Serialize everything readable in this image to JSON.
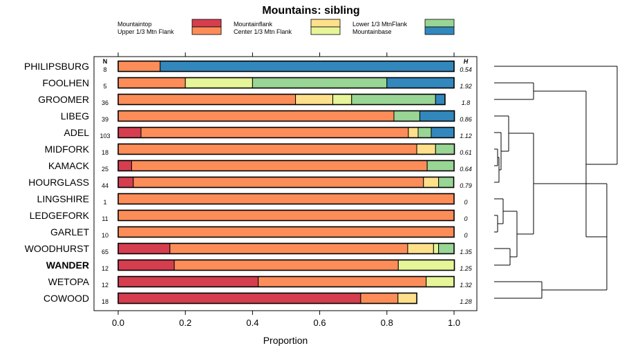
{
  "chart_data": {
    "type": "bar",
    "stacked": true,
    "orientation": "horizontal",
    "title": "Mountains: sibling",
    "xlabel": "Proportion",
    "xlim": [
      0,
      1
    ],
    "xticks": [
      "0.0",
      "0.2",
      "0.4",
      "0.6",
      "0.8",
      "1.0"
    ],
    "n_header": "N",
    "h_header": "H",
    "legend_placement": "top",
    "series": [
      {
        "name": "Mountaintop",
        "color": "#d53e4f"
      },
      {
        "name": "Upper 1/3 Mtn Flank",
        "color": "#fc8d59"
      },
      {
        "name": "Mountainflank",
        "color": "#fee08b"
      },
      {
        "name": "Center 1/3 Mtn Flank",
        "color": "#e6f598"
      },
      {
        "name": "Lower 1/3 MtnFlank",
        "color": "#99d594"
      },
      {
        "name": "Mountainbase",
        "color": "#3288bd"
      }
    ],
    "categories": [
      "PHILIPSBURG",
      "FOOLHEN",
      "GROOMER",
      "LIBEG",
      "ADEL",
      "MIDFORK",
      "KAMACK",
      "HOURGLASS",
      "LINGSHIRE",
      "LEDGEFORK",
      "GARLET",
      "WOODHURST",
      "WANDER",
      "WETOPA",
      "COWOOD"
    ],
    "highlight": "WANDER",
    "n": [
      "8",
      "5",
      "36",
      "39",
      "103",
      "18",
      "25",
      "44",
      "1",
      "11",
      "10",
      "65",
      "12",
      "12",
      "18"
    ],
    "h": [
      "0.54",
      "1.92",
      "1.8",
      "0.86",
      "1.12",
      "0.61",
      "0.64",
      "0.79",
      "0",
      "0",
      "0",
      "1.35",
      "1.25",
      "1.32",
      "1.28"
    ],
    "values": [
      [
        0,
        0.125,
        0,
        0,
        0,
        0.875
      ],
      [
        0,
        0.2,
        0,
        0.2,
        0.4,
        0.2
      ],
      [
        0,
        0.528,
        0.111,
        0.056,
        0.25,
        0.028
      ],
      [
        0,
        0.821,
        0,
        0,
        0.077,
        0.103
      ],
      [
        0.068,
        0.796,
        0.029,
        0,
        0.039,
        0.068
      ],
      [
        0,
        0.889,
        0.056,
        0,
        0.056,
        0
      ],
      [
        0.04,
        0.88,
        0,
        0,
        0.08,
        0
      ],
      [
        0.045,
        0.864,
        0.045,
        0,
        0.045,
        0
      ],
      [
        0,
        1,
        0,
        0,
        0,
        0
      ],
      [
        0,
        1,
        0,
        0,
        0,
        0
      ],
      [
        0,
        1,
        0,
        0,
        0,
        0
      ],
      [
        0.154,
        0.708,
        0.077,
        0.015,
        0.046,
        0
      ],
      [
        0.167,
        0.667,
        0,
        0.167,
        0,
        0
      ],
      [
        0.417,
        0.5,
        0,
        0.083,
        0,
        0
      ],
      [
        0.722,
        0.111,
        0.056,
        0,
        0,
        0
      ]
    ]
  }
}
